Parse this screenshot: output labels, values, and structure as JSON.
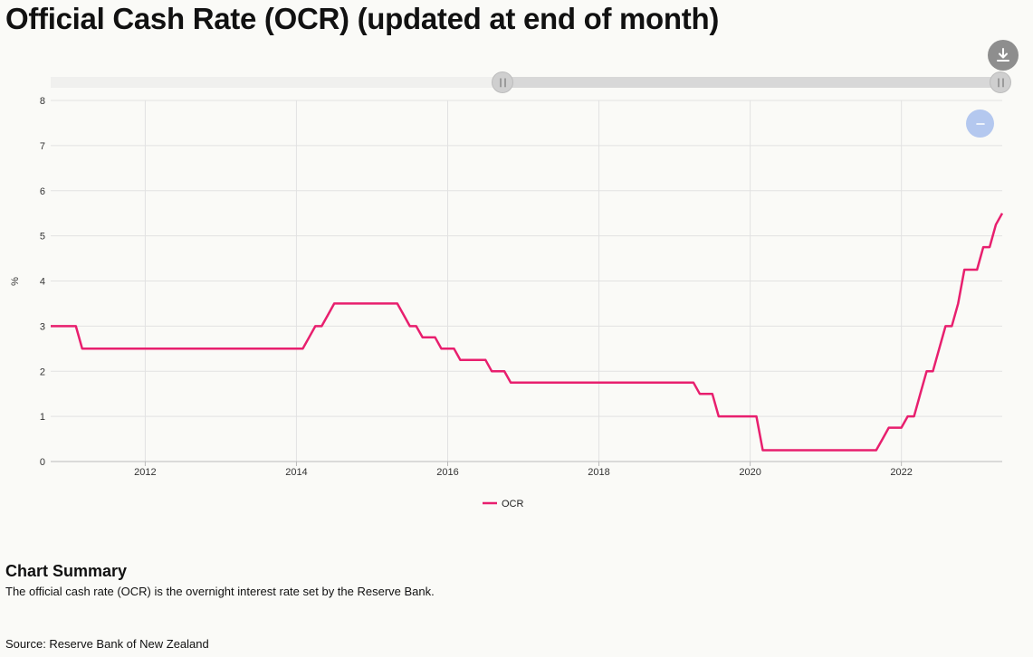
{
  "page": {
    "title": "Official Cash Rate (OCR) (updated at end of month)",
    "summary_heading": "Chart Summary",
    "summary_text": "The official cash rate (OCR) is the overnight interest rate set by the Reserve Bank.",
    "source": "Source: Reserve Bank of New Zealand"
  },
  "controls": {
    "download_icon": "download-icon",
    "zoom_out_icon": "minus-icon",
    "range_handle_icon": "grip-icon"
  },
  "colors": {
    "series": "#e81f6e",
    "grid": "#e2e2e2",
    "accent_button": "#b4c8ef",
    "download_button": "#8e8e8e"
  },
  "chart_data": {
    "type": "line",
    "title": "Official Cash Rate (OCR) (updated at end of month)",
    "xlabel": "",
    "ylabel": "%",
    "xlim": [
      "2010-10",
      "2023-05"
    ],
    "ylim": [
      0,
      8
    ],
    "yticks": [
      "0",
      "1",
      "2",
      "3",
      "4",
      "5",
      "6",
      "7",
      "8"
    ],
    "xticks": [
      "2012",
      "2014",
      "2016",
      "2018",
      "2020",
      "2022"
    ],
    "grid": true,
    "legend": "bottom-center",
    "series": [
      {
        "name": "OCR",
        "points": [
          [
            "2010-10",
            3.0
          ],
          [
            "2011-02",
            3.0
          ],
          [
            "2011-03",
            2.5
          ],
          [
            "2014-02",
            2.5
          ],
          [
            "2014-03",
            2.75
          ],
          [
            "2014-04",
            3.0
          ],
          [
            "2014-05",
            3.0
          ],
          [
            "2014-06",
            3.25
          ],
          [
            "2014-07",
            3.5
          ],
          [
            "2015-05",
            3.5
          ],
          [
            "2015-06",
            3.25
          ],
          [
            "2015-07",
            3.0
          ],
          [
            "2015-08",
            3.0
          ],
          [
            "2015-09",
            2.75
          ],
          [
            "2015-10",
            2.75
          ],
          [
            "2015-11",
            2.75
          ],
          [
            "2015-12",
            2.5
          ],
          [
            "2016-02",
            2.5
          ],
          [
            "2016-03",
            2.25
          ],
          [
            "2016-07",
            2.25
          ],
          [
            "2016-08",
            2.0
          ],
          [
            "2016-10",
            2.0
          ],
          [
            "2016-11",
            1.75
          ],
          [
            "2019-04",
            1.75
          ],
          [
            "2019-05",
            1.5
          ],
          [
            "2019-07",
            1.5
          ],
          [
            "2019-08",
            1.0
          ],
          [
            "2020-02",
            1.0
          ],
          [
            "2020-03",
            0.25
          ],
          [
            "2021-09",
            0.25
          ],
          [
            "2021-10",
            0.5
          ],
          [
            "2021-11",
            0.75
          ],
          [
            "2022-01",
            0.75
          ],
          [
            "2022-02",
            1.0
          ],
          [
            "2022-03",
            1.0
          ],
          [
            "2022-04",
            1.5
          ],
          [
            "2022-05",
            2.0
          ],
          [
            "2022-06",
            2.0
          ],
          [
            "2022-07",
            2.5
          ],
          [
            "2022-08",
            3.0
          ],
          [
            "2022-09",
            3.0
          ],
          [
            "2022-10",
            3.5
          ],
          [
            "2022-11",
            4.25
          ],
          [
            "2023-01",
            4.25
          ],
          [
            "2023-02",
            4.75
          ],
          [
            "2023-03",
            4.75
          ],
          [
            "2023-04",
            5.25
          ],
          [
            "2023-05",
            5.5
          ],
          [
            "2023-06",
            5.5
          ]
        ]
      }
    ]
  }
}
